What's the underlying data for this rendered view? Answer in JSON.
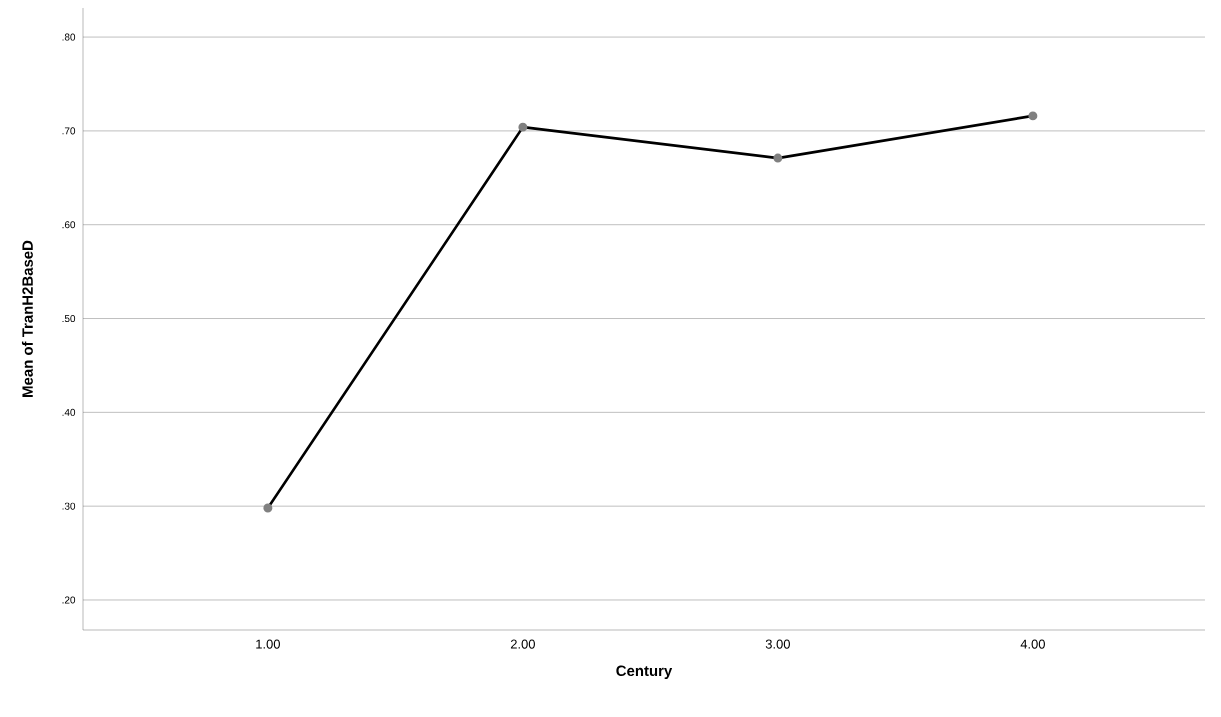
{
  "chart_data": {
    "type": "line",
    "xlabel": "Century",
    "ylabel": "Mean of TranH2BaseD",
    "categories": [
      "1.00",
      "2.00",
      "3.00",
      "4.00"
    ],
    "series": [
      {
        "color": "#000000",
        "values": [
          0.298,
          0.704,
          0.671,
          0.716
        ]
      }
    ],
    "ylim": [
      0.168,
      0.831
    ],
    "yticks": [
      {
        "value": 0.2,
        "label": ".20"
      },
      {
        "value": 0.3,
        "label": ".30"
      },
      {
        "value": 0.4,
        "label": ".40"
      },
      {
        "value": 0.5,
        "label": ".50"
      },
      {
        "value": 0.6,
        "label": ".60"
      },
      {
        "value": 0.7,
        "label": ".70"
      },
      {
        "value": 0.8,
        "label": ".80"
      }
    ],
    "grid": "y",
    "marker": "circle",
    "line_style": "solid"
  }
}
